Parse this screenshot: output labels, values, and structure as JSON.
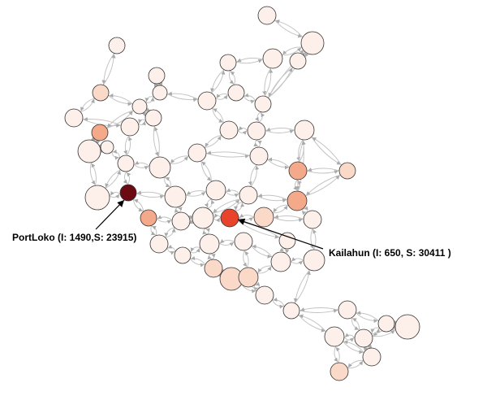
{
  "colors": {
    "edge": "#c4c4c4",
    "node_outline": "#333333",
    "scale_low": "#fdf0ea",
    "scale_mid": "#f4a98a",
    "scale_high": "#e8442b",
    "scale_max": "#6b0a12"
  },
  "annotations": [
    {
      "name": "PortLoko",
      "text": "PortLoko (I: 1490,S: 23915)"
    },
    {
      "name": "Kailahun",
      "text": "Kailahun (I: 650, S: 30411 )"
    }
  ]
}
